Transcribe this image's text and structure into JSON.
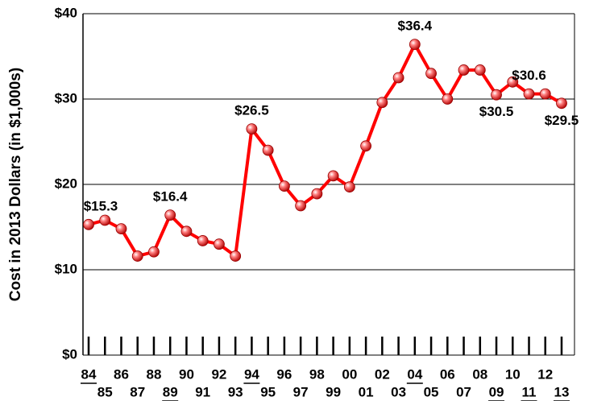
{
  "chart_data": {
    "type": "line",
    "y_label": "Cost in 2013 Dollars (in $1,000s)",
    "categories": [
      "84",
      "85",
      "86",
      "87",
      "88",
      "89",
      "90",
      "91",
      "92",
      "93",
      "94",
      "95",
      "96",
      "97",
      "98",
      "99",
      "00",
      "01",
      "02",
      "03",
      "04",
      "05",
      "06",
      "07",
      "08",
      "09",
      "10",
      "11",
      "12",
      "13"
    ],
    "underline": [
      true,
      false,
      false,
      false,
      false,
      true,
      false,
      false,
      false,
      false,
      true,
      false,
      false,
      false,
      false,
      false,
      false,
      false,
      false,
      false,
      true,
      false,
      false,
      false,
      false,
      true,
      false,
      true,
      false,
      true
    ],
    "series": [
      {
        "name": "Cost",
        "color": "#ff0000",
        "values": [
          15.3,
          15.8,
          14.8,
          11.6,
          12.1,
          16.4,
          14.5,
          13.4,
          13.0,
          11.6,
          26.5,
          24.0,
          19.8,
          17.5,
          18.9,
          21.0,
          19.7,
          24.5,
          29.6,
          32.5,
          36.4,
          33.0,
          30.0,
          33.4,
          33.4,
          30.5,
          32.0,
          30.6,
          30.6,
          29.5
        ],
        "value_labels": [
          "$15.3",
          null,
          null,
          null,
          null,
          "$16.4",
          null,
          null,
          null,
          null,
          "$26.5",
          null,
          null,
          null,
          null,
          null,
          null,
          null,
          null,
          null,
          "$36.4",
          null,
          null,
          null,
          null,
          "$30.5",
          null,
          "$30.6",
          null,
          "$29.5"
        ]
      }
    ],
    "ylim": [
      0,
      40
    ],
    "yticks": [
      {
        "value": 0,
        "label": "$0"
      },
      {
        "value": 10,
        "label": "$10"
      },
      {
        "value": 20,
        "label": "$20"
      },
      {
        "value": 30,
        "label": "$30"
      },
      {
        "value": 40,
        "label": "$40"
      }
    ],
    "grid": true
  }
}
